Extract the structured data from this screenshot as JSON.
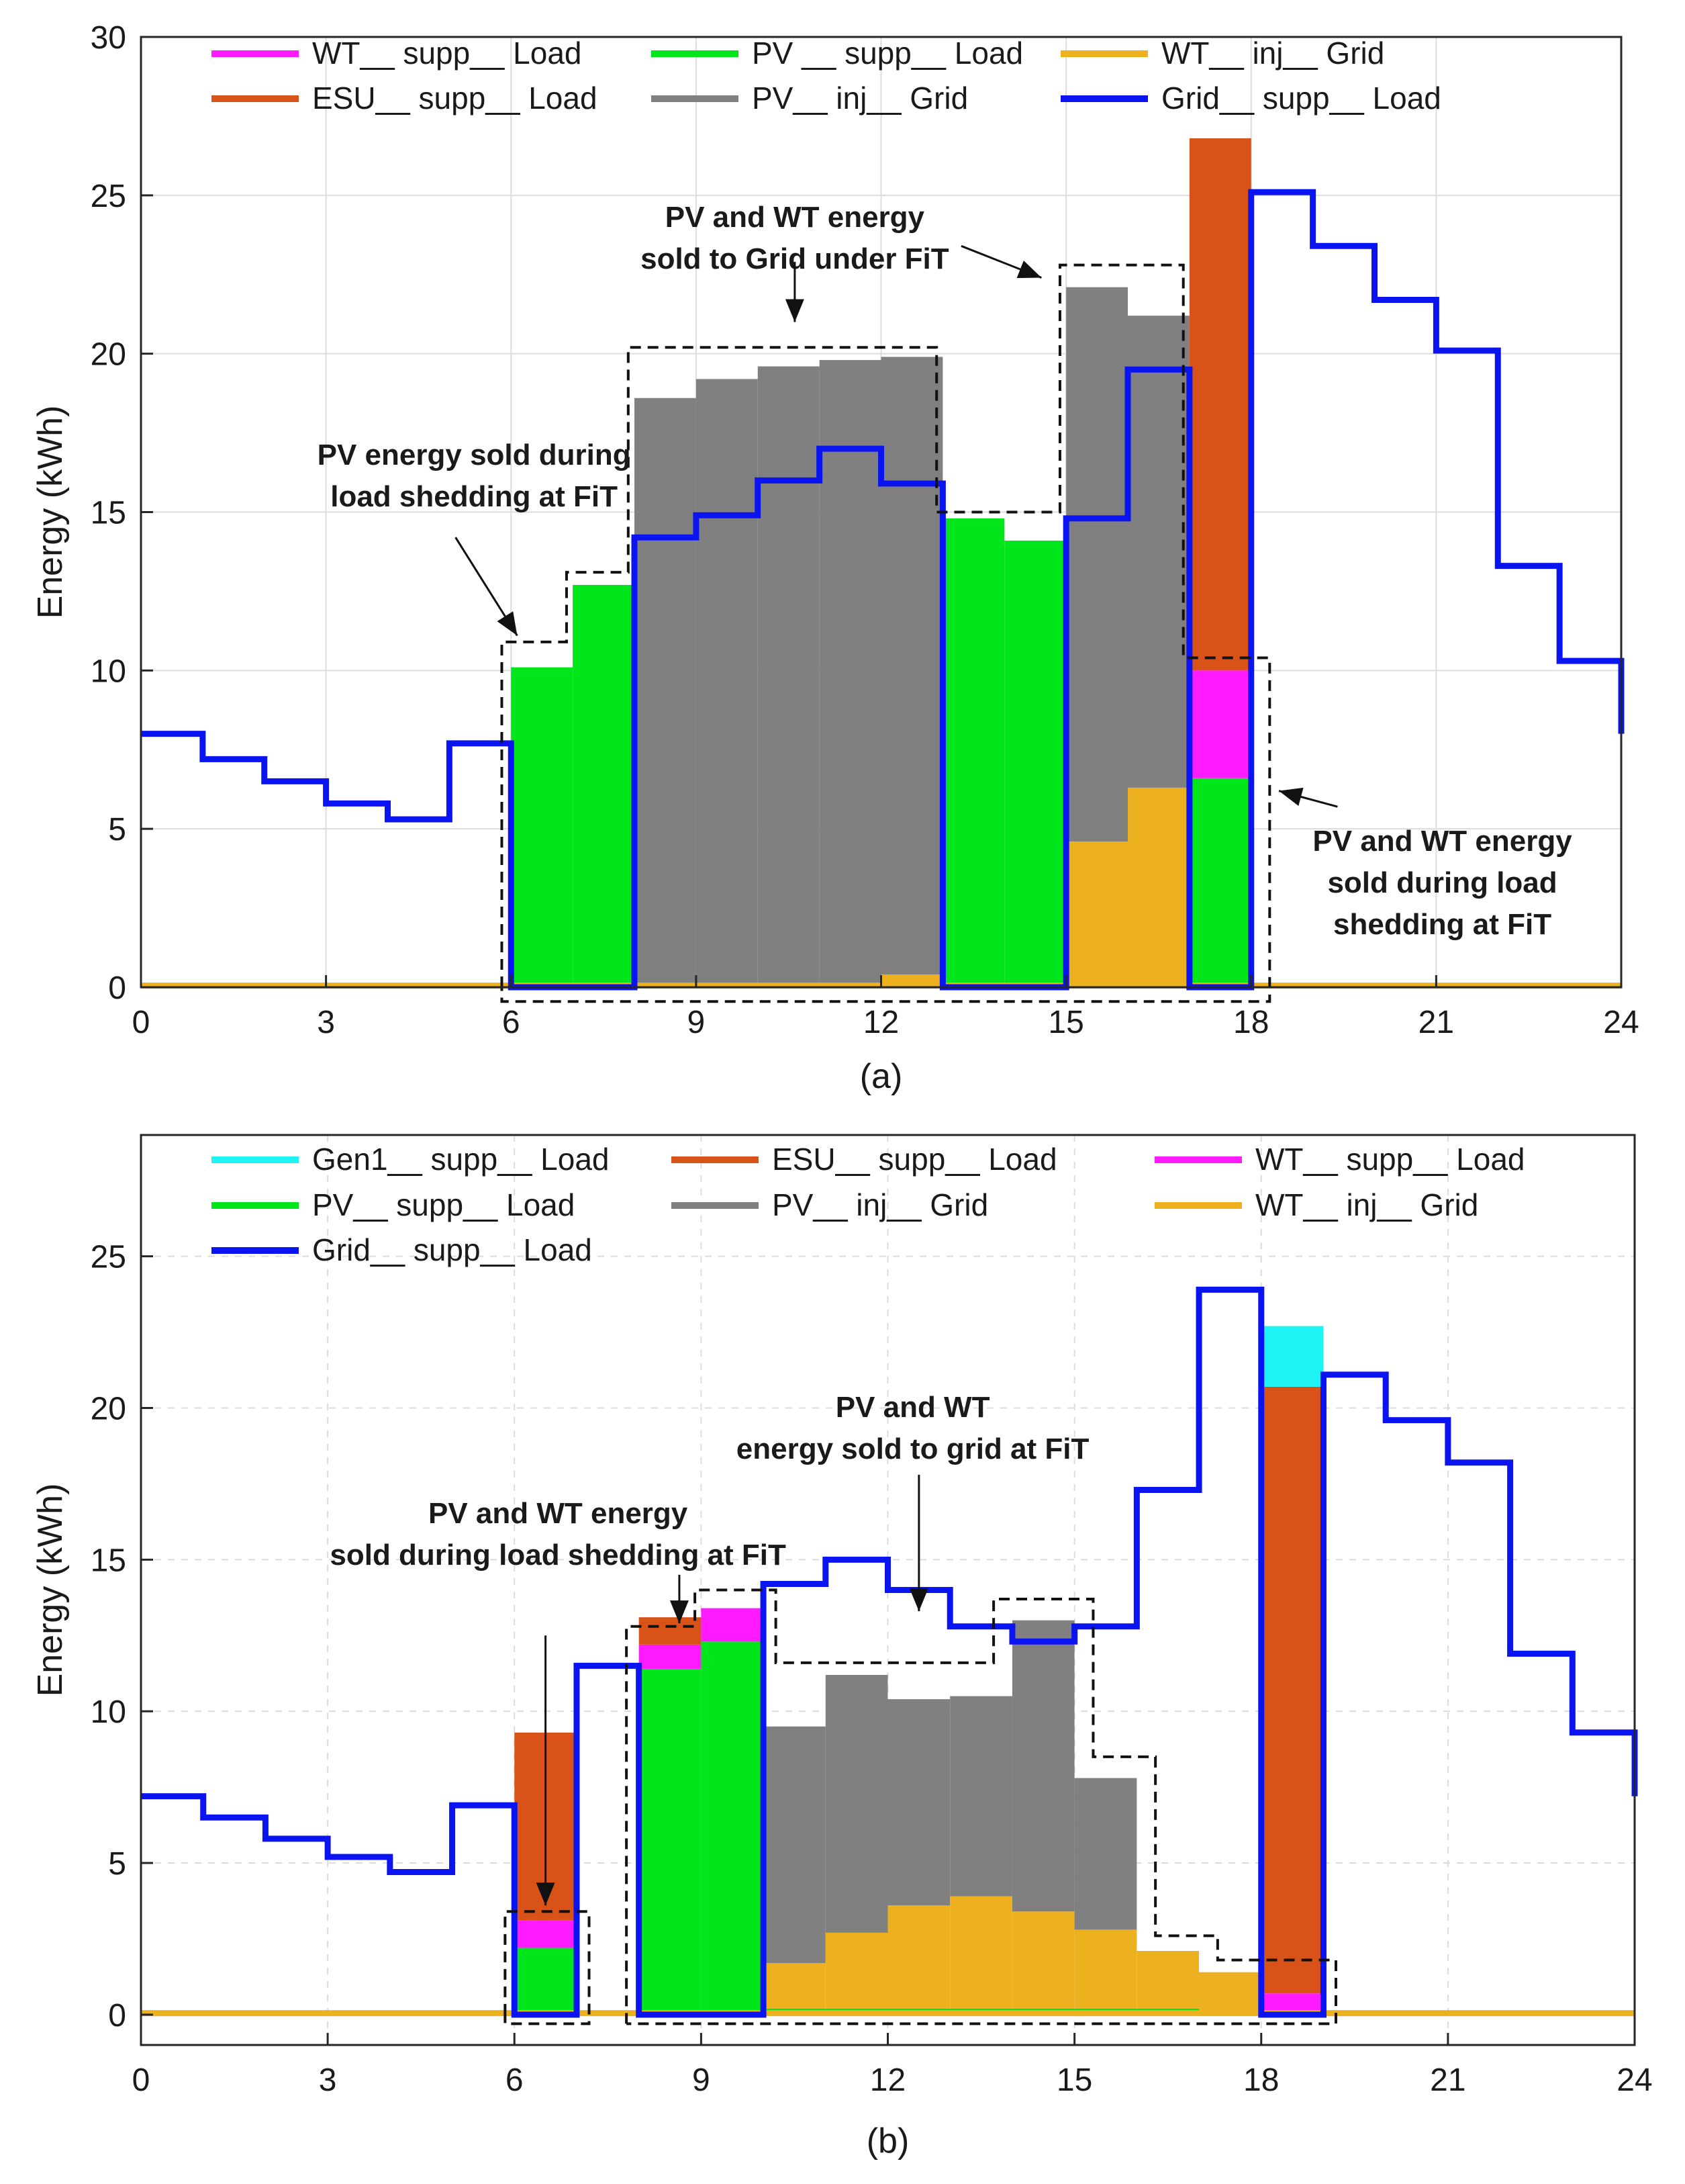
{
  "colors": {
    "Gen1": "#1ff2f2",
    "ESU": "#d95319",
    "WT_supp": "#ff1aff",
    "PV_supp": "#00e61a",
    "PV_inj": "#808080",
    "WT_inj": "#edb120",
    "Grid": "#0a14f0"
  },
  "chart_data": [
    {
      "type": "bar",
      "panel_label": "(a)",
      "ylabel": "Energy (kWh)",
      "xlim": [
        0,
        24
      ],
      "ylim": [
        0,
        30
      ],
      "xticks": [
        0,
        3,
        6,
        9,
        12,
        15,
        18,
        21,
        24
      ],
      "yticks": [
        0,
        5,
        10,
        15,
        20,
        25,
        30
      ],
      "grid": true,
      "legend": [
        {
          "label": "WT__ supp__ Load",
          "color_key": "WT_supp"
        },
        {
          "label": "PV __ supp__ Load",
          "color_key": "PV_supp"
        },
        {
          "label": "WT__ inj__ Grid",
          "color_key": "WT_inj"
        },
        {
          "label": "ESU__ supp__ Load",
          "color_key": "ESU"
        },
        {
          "label": "PV__ inj__ Grid",
          "color_key": "PV_inj"
        },
        {
          "label": "Grid__ supp__ Load",
          "color_key": "Grid"
        }
      ],
      "bars": [
        {
          "hour": 6,
          "segments": [
            {
              "key": "PV_supp",
              "value": 10.1
            }
          ]
        },
        {
          "hour": 7,
          "segments": [
            {
              "key": "PV_supp",
              "value": 12.7
            }
          ]
        },
        {
          "hour": 8,
          "segments": [
            {
              "key": "PV_supp",
              "value": 0.1
            },
            {
              "key": "PV_inj",
              "value": 18.5
            }
          ]
        },
        {
          "hour": 9,
          "segments": [
            {
              "key": "PV_supp",
              "value": 0.1
            },
            {
              "key": "PV_inj",
              "value": 19.1
            }
          ]
        },
        {
          "hour": 10,
          "segments": [
            {
              "key": "PV_supp",
              "value": 0.1
            },
            {
              "key": "PV_inj",
              "value": 19.5
            }
          ]
        },
        {
          "hour": 11,
          "segments": [
            {
              "key": "PV_supp",
              "value": 0.1
            },
            {
              "key": "PV_inj",
              "value": 19.7
            }
          ]
        },
        {
          "hour": 12,
          "segments": [
            {
              "key": "WT_inj",
              "value": 0.4
            },
            {
              "key": "PV_inj",
              "value": 19.5
            }
          ]
        },
        {
          "hour": 13,
          "segments": [
            {
              "key": "PV_supp",
              "value": 14.8
            }
          ]
        },
        {
          "hour": 14,
          "segments": [
            {
              "key": "PV_supp",
              "value": 14.1
            }
          ]
        },
        {
          "hour": 15,
          "segments": [
            {
              "key": "WT_inj",
              "value": 4.6
            },
            {
              "key": "PV_inj",
              "value": 17.5
            }
          ]
        },
        {
          "hour": 16,
          "segments": [
            {
              "key": "WT_inj",
              "value": 6.3
            },
            {
              "key": "PV_inj",
              "value": 14.9
            }
          ]
        },
        {
          "hour": 17,
          "segments": [
            {
              "key": "PV_supp",
              "value": 6.6
            },
            {
              "key": "WT_supp",
              "value": 3.4
            },
            {
              "key": "ESU",
              "value": 16.8
            }
          ]
        }
      ],
      "grid_supp": {
        "x": [
          0,
          1,
          2,
          3,
          4,
          5,
          6,
          7,
          8,
          9,
          10,
          11,
          12,
          13,
          14,
          15,
          16,
          17,
          18,
          19,
          20,
          21,
          22,
          23,
          24
        ],
        "y": [
          8.0,
          7.2,
          6.5,
          5.8,
          5.3,
          7.7,
          0,
          0,
          14.2,
          14.9,
          16.0,
          17.0,
          15.9,
          0,
          0,
          14.8,
          19.5,
          0,
          25.1,
          23.4,
          21.7,
          20.1,
          13.3,
          10.3,
          8.0
        ]
      },
      "wt_inj_line": {
        "y": 0.05
      },
      "boxes": [
        [
          [
            5.85,
            0
          ],
          [
            5.85,
            10.9
          ],
          [
            6.9,
            10.9
          ],
          [
            6.9,
            13.1
          ],
          [
            7.9,
            13.1
          ],
          [
            7.9,
            20.2
          ],
          [
            12.9,
            20.2
          ],
          [
            12.9,
            15.0
          ],
          [
            14.9,
            15.0
          ],
          [
            14.9,
            22.8
          ],
          [
            16.9,
            22.8
          ],
          [
            16.9,
            10.4
          ],
          [
            18.3,
            10.4
          ],
          [
            18.3,
            -0.45
          ],
          [
            5.85,
            -0.45
          ],
          [
            5.85,
            0
          ]
        ]
      ],
      "annotations": [
        {
          "lines": [
            "PV and WT energy",
            "sold to Grid under FiT"
          ],
          "x": 10.6,
          "y": 24.0,
          "arrows": [
            {
              "from": [
                10.6,
                22.9
              ],
              "to": [
                10.6,
                21.0
              ]
            },
            {
              "from": [
                13.3,
                23.4
              ],
              "to": [
                14.6,
                22.4
              ]
            }
          ]
        },
        {
          "lines": [
            "PV energy sold during",
            "load shedding at FiT"
          ],
          "x": 5.4,
          "y": 16.5,
          "arrows": [
            {
              "from": [
                5.1,
                14.2
              ],
              "to": [
                6.1,
                11.1
              ]
            }
          ]
        },
        {
          "lines": [
            "PV and WT energy",
            "sold during load",
            "shedding at FiT"
          ],
          "x": 21.1,
          "y": 4.3,
          "arrows": [
            {
              "from": [
                19.4,
                5.7
              ],
              "to": [
                18.45,
                6.2
              ]
            }
          ]
        }
      ]
    },
    {
      "type": "bar",
      "panel_label": "(b)",
      "ylabel": "Energy (kWh)",
      "xlim": [
        0,
        24
      ],
      "ylim": [
        -1,
        29
      ],
      "xticks": [
        0,
        3,
        6,
        9,
        12,
        15,
        18,
        21,
        24
      ],
      "yticks": [
        0,
        5,
        10,
        15,
        20,
        25
      ],
      "grid": true,
      "legend": [
        {
          "label": "Gen1__ supp__ Load",
          "color_key": "Gen1"
        },
        {
          "label": "ESU__ supp__ Load",
          "color_key": "ESU"
        },
        {
          "label": "WT__ supp__ Load",
          "color_key": "WT_supp"
        },
        {
          "label": "PV__ supp__ Load",
          "color_key": "PV_supp"
        },
        {
          "label": "PV__ inj__ Grid",
          "color_key": "PV_inj"
        },
        {
          "label": "WT__ inj__ Grid",
          "color_key": "WT_inj"
        },
        {
          "label": "Grid__ supp__ Load",
          "color_key": "Grid"
        }
      ],
      "bars": [
        {
          "hour": 6,
          "segments": [
            {
              "key": "PV_supp",
              "value": 2.2
            },
            {
              "key": "WT_supp",
              "value": 0.9
            },
            {
              "key": "ESU",
              "value": 6.2
            }
          ]
        },
        {
          "hour": 8,
          "segments": [
            {
              "key": "PV_supp",
              "value": 11.4
            },
            {
              "key": "WT_supp",
              "value": 0.8
            },
            {
              "key": "ESU",
              "value": 0.9
            }
          ]
        },
        {
          "hour": 9,
          "segments": [
            {
              "key": "PV_supp",
              "value": 12.3
            },
            {
              "key": "WT_supp",
              "value": 1.1
            }
          ]
        },
        {
          "hour": 10,
          "segments": [
            {
              "key": "PV_supp",
              "value": 0.2
            },
            {
              "key": "WT_inj",
              "value": 1.5
            },
            {
              "key": "PV_inj",
              "value": 7.8
            }
          ]
        },
        {
          "hour": 11,
          "segments": [
            {
              "key": "PV_supp",
              "value": 0.2
            },
            {
              "key": "WT_inj",
              "value": 2.5
            },
            {
              "key": "PV_inj",
              "value": 8.5
            }
          ]
        },
        {
          "hour": 12,
          "segments": [
            {
              "key": "PV_supp",
              "value": 0.2
            },
            {
              "key": "WT_inj",
              "value": 3.4
            },
            {
              "key": "PV_inj",
              "value": 6.8
            }
          ]
        },
        {
          "hour": 13,
          "segments": [
            {
              "key": "PV_supp",
              "value": 0.2
            },
            {
              "key": "WT_inj",
              "value": 3.7
            },
            {
              "key": "PV_inj",
              "value": 6.6
            }
          ]
        },
        {
          "hour": 14,
          "segments": [
            {
              "key": "PV_supp",
              "value": 0.2
            },
            {
              "key": "WT_inj",
              "value": 3.2
            },
            {
              "key": "PV_inj",
              "value": 9.6
            }
          ]
        },
        {
          "hour": 15,
          "segments": [
            {
              "key": "PV_supp",
              "value": 0.2
            },
            {
              "key": "WT_inj",
              "value": 2.6
            },
            {
              "key": "PV_inj",
              "value": 5.0
            }
          ]
        },
        {
          "hour": 16,
          "segments": [
            {
              "key": "PV_supp",
              "value": 0.2
            },
            {
              "key": "WT_inj",
              "value": 1.9
            }
          ]
        },
        {
          "hour": 17,
          "segments": [
            {
              "key": "WT_inj",
              "value": 1.4
            }
          ]
        },
        {
          "hour": 18,
          "segments": [
            {
              "key": "WT_supp",
              "value": 0.7
            },
            {
              "key": "ESU",
              "value": 20.0
            },
            {
              "key": "Gen1",
              "value": 2.0
            }
          ]
        }
      ],
      "grid_supp": {
        "x": [
          0,
          1,
          2,
          3,
          4,
          5,
          6,
          7,
          8,
          9,
          10,
          11,
          12,
          13,
          14,
          15,
          16,
          17,
          18,
          19,
          20,
          21,
          22,
          23,
          24
        ],
        "y": [
          7.2,
          6.5,
          5.8,
          5.2,
          4.7,
          6.9,
          0,
          11.5,
          0,
          0,
          14.2,
          15.0,
          14.0,
          12.8,
          12.3,
          12.8,
          17.3,
          23.9,
          0,
          21.1,
          19.6,
          18.2,
          11.9,
          9.3,
          7.2
        ]
      },
      "wt_inj_line": {
        "y": 0.05
      },
      "boxes": [
        [
          [
            5.85,
            0
          ],
          [
            5.85,
            3.4
          ],
          [
            7.2,
            3.4
          ],
          [
            7.2,
            -0.3
          ],
          [
            5.85,
            -0.3
          ],
          [
            5.85,
            0
          ]
        ],
        [
          [
            7.8,
            -0.3
          ],
          [
            7.8,
            12.8
          ],
          [
            8.9,
            12.8
          ],
          [
            8.9,
            14.0
          ],
          [
            10.2,
            14.0
          ],
          [
            10.2,
            11.6
          ],
          [
            13.7,
            11.6
          ],
          [
            13.7,
            13.7
          ],
          [
            15.3,
            13.7
          ],
          [
            15.3,
            8.5
          ],
          [
            16.3,
            8.5
          ],
          [
            16.3,
            2.6
          ],
          [
            17.3,
            2.6
          ],
          [
            17.3,
            1.8
          ],
          [
            19.2,
            1.8
          ],
          [
            19.2,
            -0.3
          ],
          [
            7.8,
            -0.3
          ]
        ]
      ],
      "annotations": [
        {
          "lines": [
            "PV and WT",
            "energy sold to grid at FiT"
          ],
          "x": 12.4,
          "y": 19.7,
          "arrows": [
            {
              "from": [
                12.5,
                17.8
              ],
              "to": [
                12.5,
                13.3
              ]
            }
          ]
        },
        {
          "lines": [
            "PV and WT energy",
            "sold during load shedding at FiT"
          ],
          "x": 6.7,
          "y": 16.2,
          "arrows": [
            {
              "from": [
                8.65,
                14.5
              ],
              "to": [
                8.65,
                12.9
              ]
            },
            {
              "from": [
                6.5,
                12.5
              ],
              "to": [
                6.5,
                3.6
              ]
            }
          ]
        }
      ]
    }
  ]
}
